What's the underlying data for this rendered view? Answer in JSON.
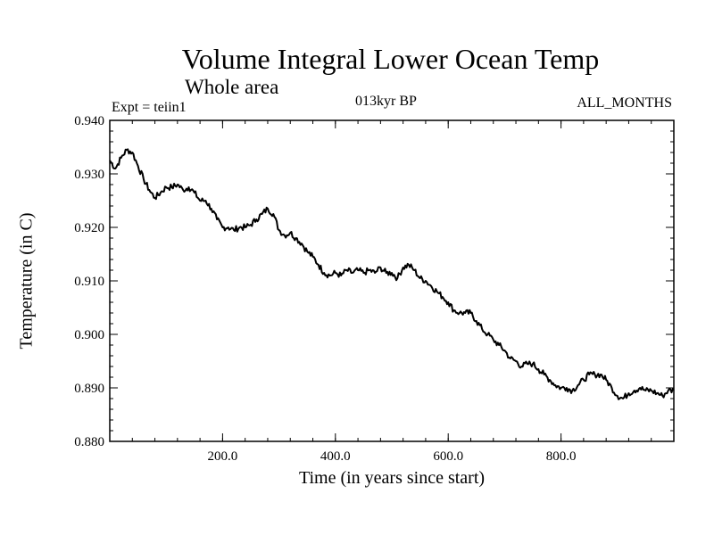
{
  "chart_data": {
    "type": "line",
    "title": "Volume Integral Lower Ocean Temp",
    "subtitle": "Whole area",
    "experiment": "Expt = teiin1",
    "period": "013kyr BP",
    "months": "ALL_MONTHS",
    "xlabel": "Time (in years since start)",
    "ylabel": "Temperature (in C)",
    "xlim": [
      0,
      1000
    ],
    "ylim": [
      0.88,
      0.94
    ],
    "x_ticks": [
      200,
      400,
      600,
      800
    ],
    "x_tick_labels": [
      "200.0",
      "400.0",
      "600.0",
      "800.0"
    ],
    "y_ticks": [
      0.88,
      0.89,
      0.9,
      0.91,
      0.92,
      0.93,
      0.94
    ],
    "y_tick_labels": [
      "0.880",
      "0.890",
      "0.900",
      "0.910",
      "0.920",
      "0.930",
      "0.940"
    ],
    "grid": false,
    "series": [
      {
        "x": [
          0,
          10,
          20,
          30,
          40,
          50,
          60,
          70,
          80,
          90,
          100,
          110,
          120,
          130,
          140,
          150,
          160,
          170,
          180,
          190,
          200,
          210,
          220,
          230,
          240,
          250,
          260,
          270,
          280,
          290,
          300,
          310,
          320,
          330,
          340,
          350,
          360,
          370,
          380,
          390,
          400,
          410,
          420,
          430,
          440,
          450,
          460,
          470,
          480,
          490,
          500,
          510,
          520,
          530,
          540,
          550,
          560,
          570,
          580,
          590,
          600,
          610,
          620,
          630,
          640,
          650,
          660,
          670,
          680,
          690,
          700,
          710,
          720,
          730,
          740,
          750,
          760,
          770,
          780,
          790,
          800,
          810,
          820,
          830,
          840,
          850,
          860,
          870,
          880,
          890,
          900,
          910,
          920,
          930,
          940,
          950,
          960,
          970,
          980,
          990,
          1000
        ],
        "y": [
          0.9325,
          0.931,
          0.933,
          0.9345,
          0.934,
          0.9315,
          0.929,
          0.927,
          0.9255,
          0.9265,
          0.9275,
          0.9275,
          0.928,
          0.927,
          0.9275,
          0.9265,
          0.925,
          0.925,
          0.9235,
          0.9215,
          0.92,
          0.92,
          0.9195,
          0.92,
          0.92,
          0.9205,
          0.9215,
          0.9225,
          0.9235,
          0.9225,
          0.9195,
          0.9185,
          0.919,
          0.918,
          0.917,
          0.9155,
          0.9145,
          0.913,
          0.9115,
          0.911,
          0.9115,
          0.911,
          0.912,
          0.9115,
          0.912,
          0.9115,
          0.912,
          0.9115,
          0.9125,
          0.9115,
          0.9115,
          0.9105,
          0.9125,
          0.913,
          0.912,
          0.9105,
          0.91,
          0.909,
          0.908,
          0.907,
          0.906,
          0.9045,
          0.904,
          0.904,
          0.904,
          0.9025,
          0.901,
          0.9,
          0.899,
          0.898,
          0.897,
          0.8955,
          0.895,
          0.894,
          0.8945,
          0.8945,
          0.8935,
          0.8925,
          0.8915,
          0.8905,
          0.89,
          0.89,
          0.8895,
          0.8905,
          0.8915,
          0.8925,
          0.8925,
          0.8925,
          0.8915,
          0.89,
          0.8885,
          0.888,
          0.889,
          0.8895,
          0.89,
          0.8895,
          0.8895,
          0.889,
          0.8885,
          0.8895,
          0.8895
        ]
      }
    ]
  }
}
